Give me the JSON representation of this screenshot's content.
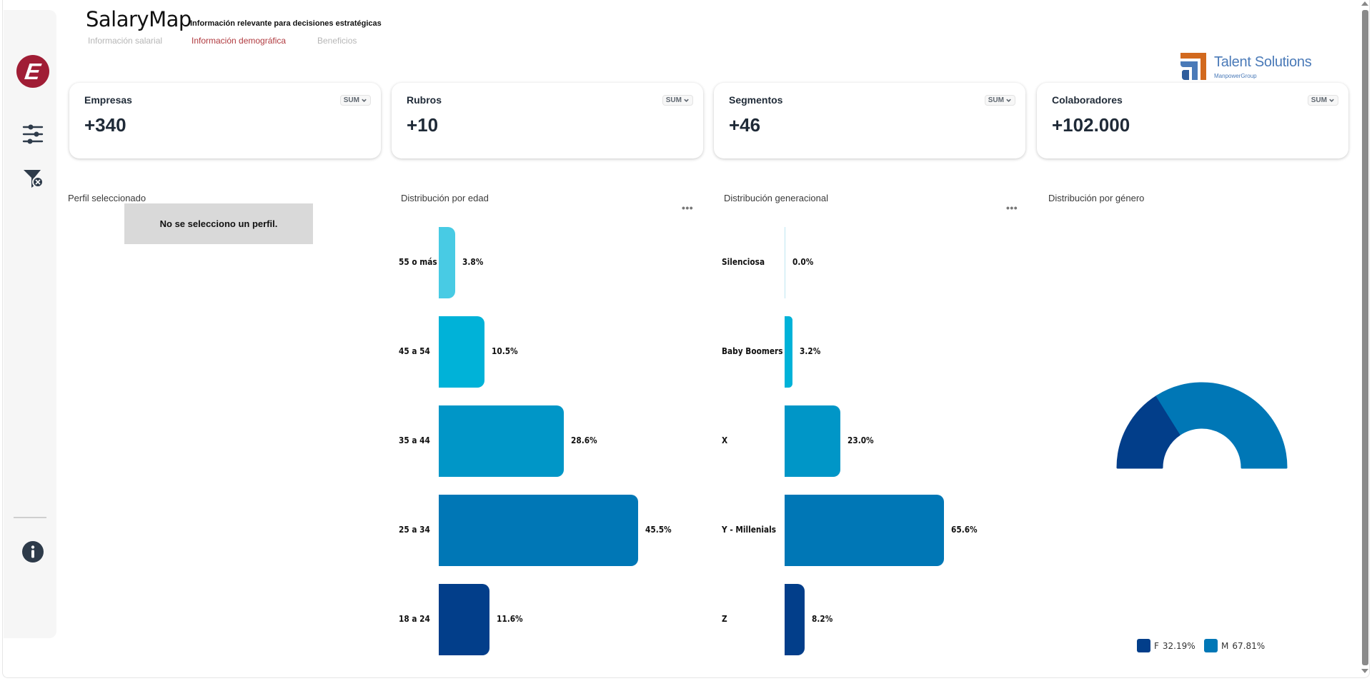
{
  "header": {
    "title": "SalaryMap",
    "subtitle": "Información relevante para decisiones estratégicas",
    "tabs": [
      {
        "label": "Información salarial",
        "active": false
      },
      {
        "label": "Información demográfica",
        "active": true
      },
      {
        "label": "Beneficios",
        "active": false
      }
    ]
  },
  "brand": {
    "name": "Talent Solutions",
    "sub": "ManpowerGroup",
    "colors": {
      "orange": "#d2691e",
      "blue": "#4a7ab8"
    }
  },
  "sidebar": {
    "logo_letter": "E",
    "logo_color": "#a01d35",
    "icons": [
      "filter-sliders-icon",
      "clear-filter-icon",
      "info-icon"
    ]
  },
  "kpis": [
    {
      "label": "Empresas",
      "value": "+340",
      "agg": "SUM"
    },
    {
      "label": "Rubros",
      "value": "+10",
      "agg": "SUM"
    },
    {
      "label": "Segmentos",
      "value": "+46",
      "agg": "SUM"
    },
    {
      "label": "Colaboradores",
      "value": "+102.000",
      "agg": "SUM"
    }
  ],
  "profile": {
    "title": "Perfil seleccionado",
    "empty_message": "No se selecciono un perfil."
  },
  "more_label": "•••",
  "chart_data": [
    {
      "type": "bar",
      "orientation": "horizontal",
      "title": "Distribución por edad",
      "categories": [
        "55 o más",
        "45 a 54",
        "35 a 44",
        "25 a 34",
        "18 a 24"
      ],
      "values": [
        3.8,
        10.5,
        28.6,
        45.5,
        11.6
      ],
      "labels": [
        "3.8%",
        "10.5%",
        "28.6%",
        "45.5%",
        "11.6%"
      ],
      "colors": [
        "#48cbe4",
        "#00b2d8",
        "#0096c7",
        "#0077b6",
        "#023e8a"
      ],
      "unit": "%"
    },
    {
      "type": "bar",
      "orientation": "horizontal",
      "title": "Distribución generacional",
      "categories": [
        "Silenciosa",
        "Baby Boomers",
        "X",
        "Y - Millenials",
        "Z"
      ],
      "values": [
        0.0,
        3.2,
        23.0,
        65.6,
        8.2
      ],
      "labels": [
        "0.0%",
        "3.2%",
        "23.0%",
        "65.6%",
        "8.2%"
      ],
      "colors": [
        "#48cbe4",
        "#00b2d8",
        "#0096c7",
        "#0077b6",
        "#023e8a"
      ],
      "unit": "%"
    },
    {
      "type": "pie",
      "variant": "half-donut",
      "title": "Distribución por género",
      "categories": [
        "F",
        "M"
      ],
      "values": [
        32.19,
        67.81
      ],
      "labels": [
        "32.19%",
        "67.81%"
      ],
      "colors": [
        "#023e8a",
        "#0077b6"
      ],
      "legend": "bottom"
    }
  ]
}
